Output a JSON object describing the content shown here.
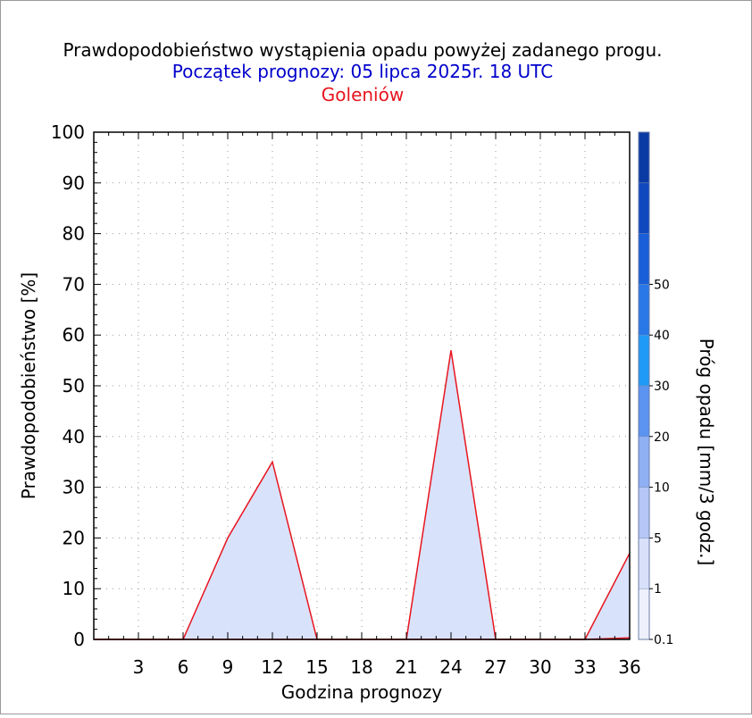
{
  "chart_data": {
    "type": "area",
    "title": "Prawdopodobieństwo wystąpienia opadu powyżej zadanego progu.",
    "subtitle": "Początek prognozy: 05 lipca 2025r. 18 UTC",
    "station": "Goleniów",
    "xlabel": "Godzina prognozy",
    "ylabel": "Prawdopodobieństwo [%]",
    "xlim": [
      0,
      36
    ],
    "ylim": [
      0,
      100
    ],
    "xticks": [
      3,
      6,
      9,
      12,
      15,
      18,
      21,
      24,
      27,
      30,
      33,
      36
    ],
    "yticks": [
      0,
      10,
      20,
      30,
      40,
      50,
      60,
      70,
      80,
      90,
      100
    ],
    "grid": true,
    "colorbar": {
      "label": "Próg opadu [mm/3 godz.]",
      "ticks": [
        "0.1",
        "1",
        "5",
        "10",
        "20",
        "30",
        "40",
        "50"
      ],
      "colors": [
        "#eef1fb",
        "#d8e0fa",
        "#b6c6f6",
        "#8fb0f3",
        "#5b93f0",
        "#1f9af5",
        "#2a78e8",
        "#1a5fd8",
        "#0f48bf",
        "#0a3aa4"
      ]
    },
    "series": [
      {
        "threshold": "0.1",
        "color": "#e8141e",
        "fill": "#d9e2fb",
        "x": [
          0,
          3,
          6,
          9,
          12,
          15,
          18,
          21,
          24,
          27,
          30,
          33,
          36
        ],
        "values": [
          0,
          0,
          0,
          20,
          35,
          0,
          0,
          0,
          57,
          0,
          0,
          0,
          17
        ]
      },
      {
        "threshold": "1",
        "color": "#e8141e",
        "fill": "#c3cff6",
        "x": [
          0,
          3,
          6,
          9,
          12,
          15,
          18,
          21,
          24,
          27,
          30,
          33,
          36
        ],
        "values": [
          0,
          0,
          0,
          0,
          0,
          0,
          0,
          0,
          0,
          0,
          0,
          0,
          0.3
        ]
      }
    ]
  }
}
